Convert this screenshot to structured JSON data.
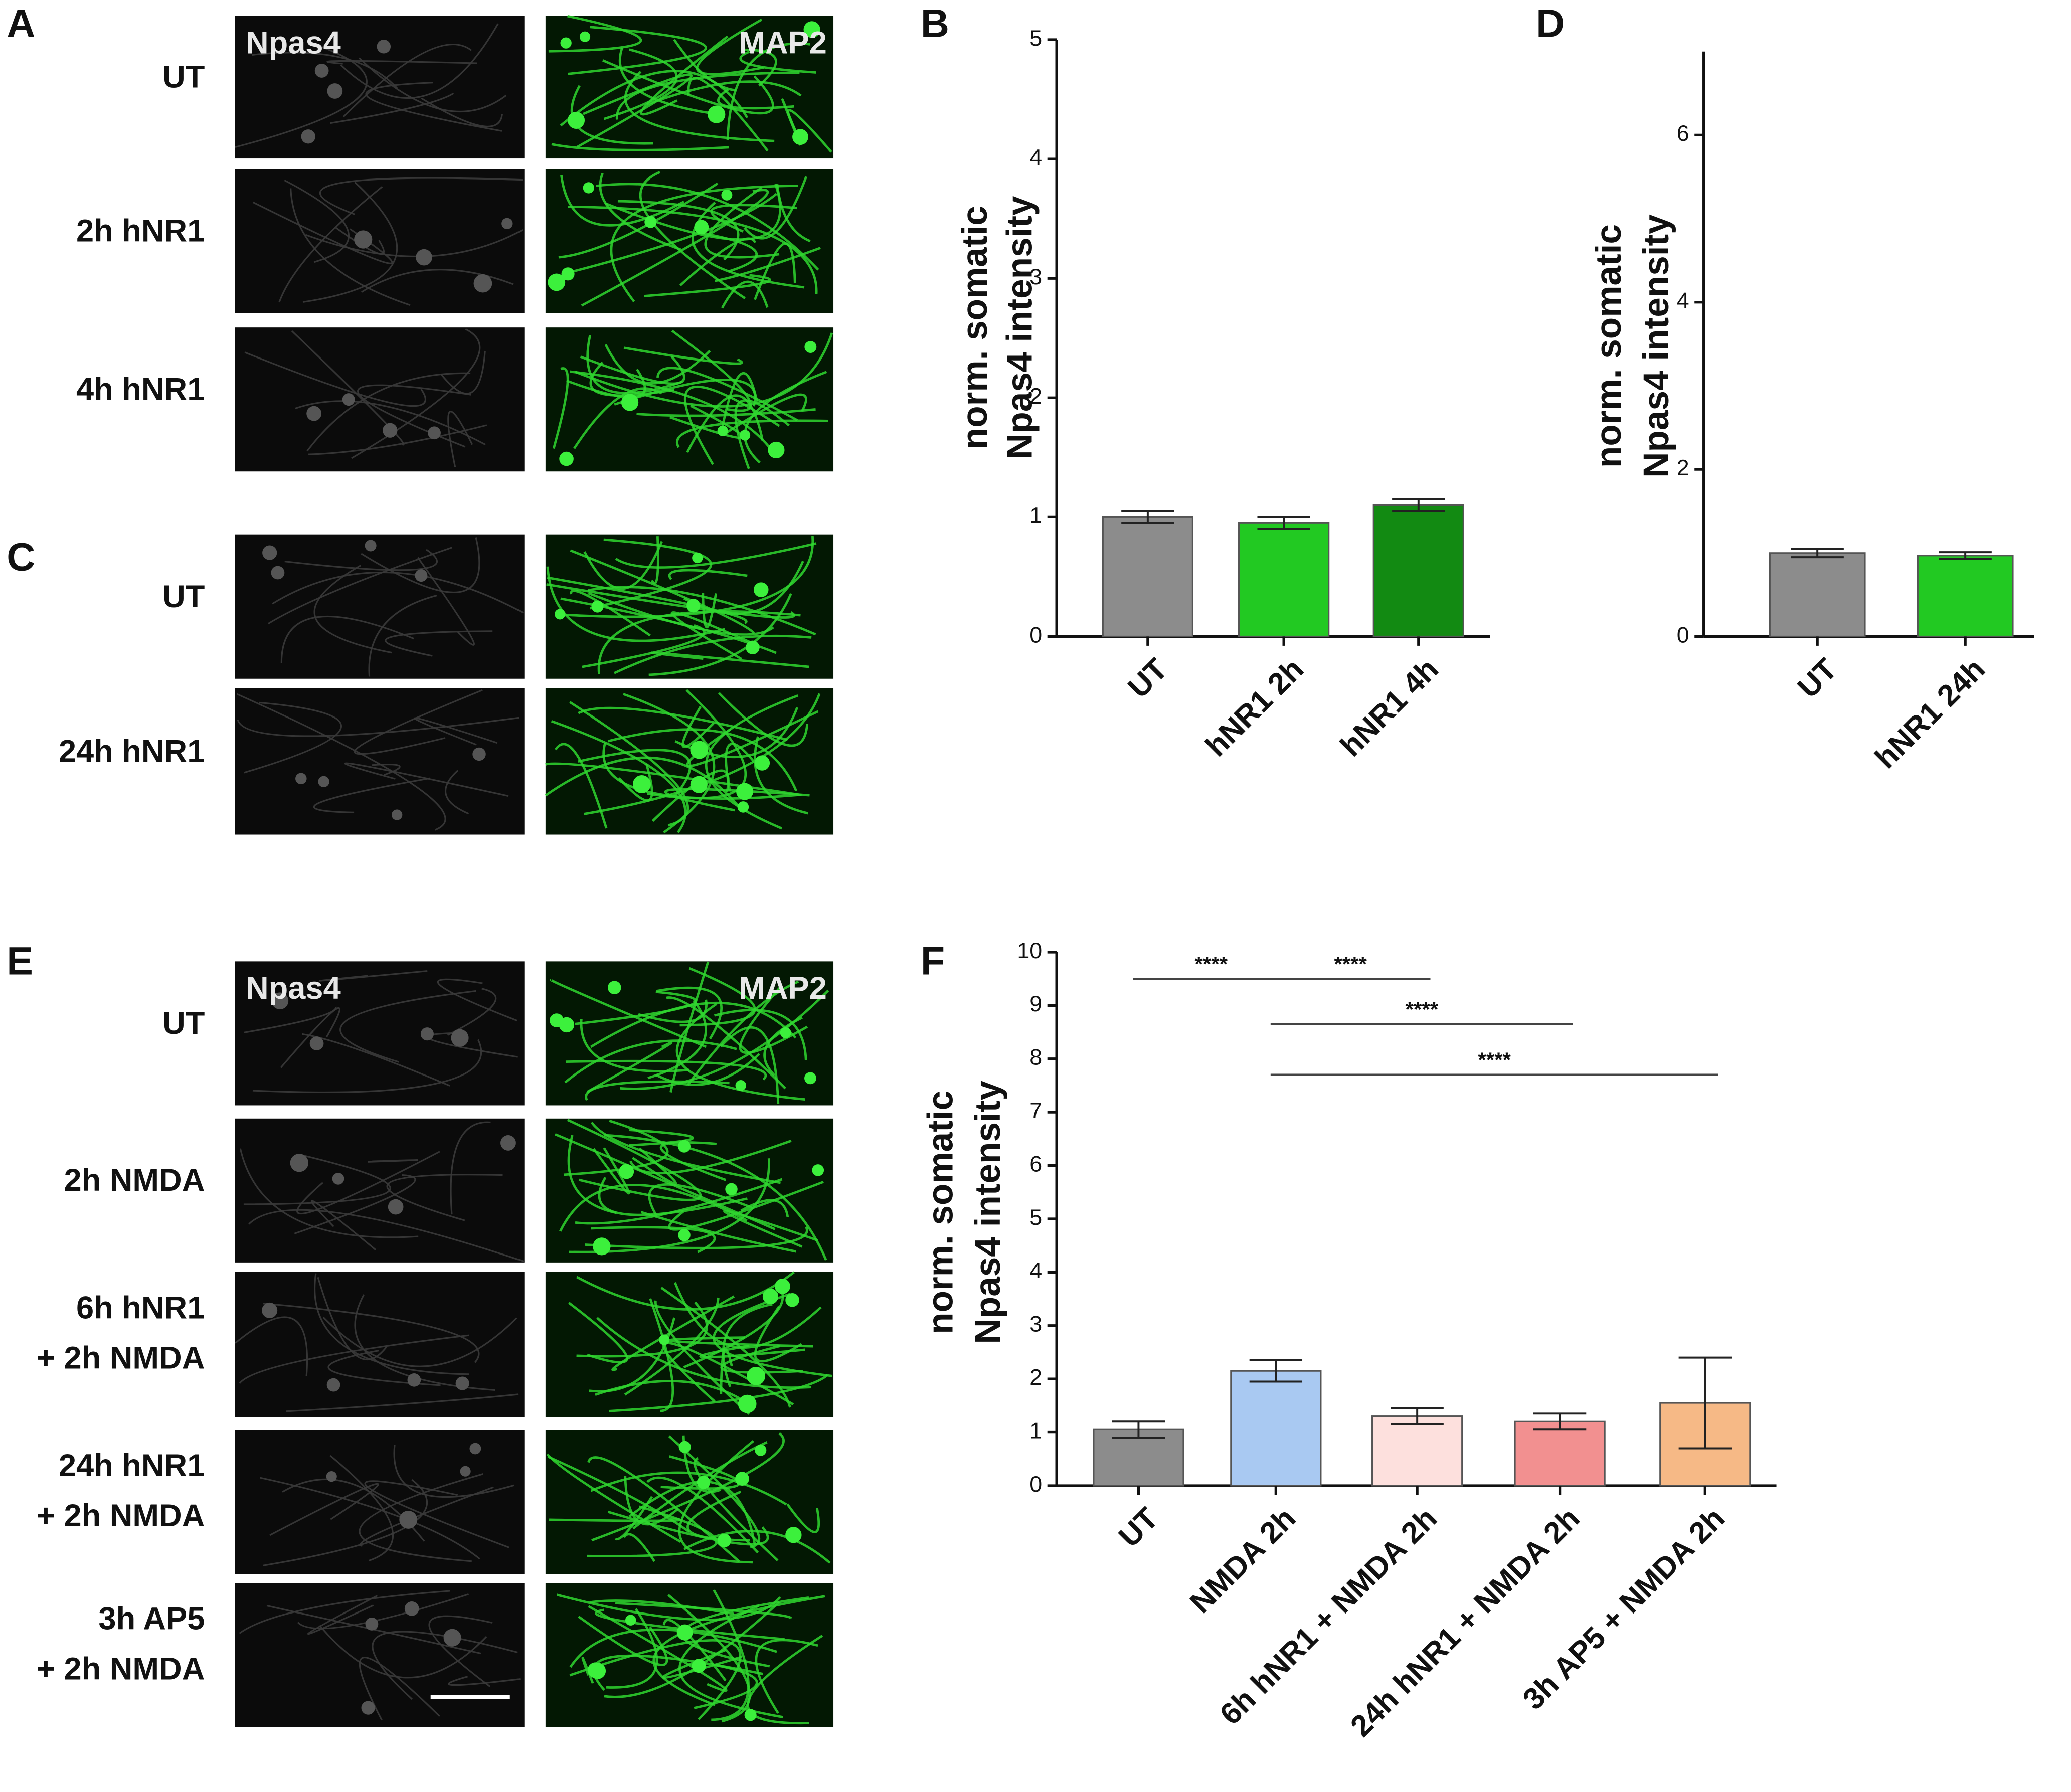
{
  "figure": {
    "panel_letters": [
      "A",
      "B",
      "C",
      "D",
      "E",
      "F"
    ],
    "image_panels": [
      {
        "channels": [
          "Npas4",
          "MAP2"
        ],
        "rows": [
          [
            "UT"
          ],
          [
            "2h hNR1"
          ],
          [
            "4h hNR1"
          ]
        ]
      },
      {
        "rows": [
          [
            "UT"
          ],
          [
            "24h hNR1"
          ]
        ]
      },
      {
        "channels": [
          "Npas4",
          "MAP2"
        ],
        "rows": [
          [
            "UT"
          ],
          [
            "2h NMDA"
          ],
          [
            "6h hNR1",
            "+ 2h NMDA"
          ],
          [
            "24h hNR1",
            "+ 2h NMDA"
          ],
          [
            "3h AP5",
            "+ 2h NMDA"
          ]
        ]
      }
    ]
  },
  "chart_data": [
    {
      "type": "bar",
      "y_label": [
        "norm. somatic",
        "Npas4 intensity"
      ],
      "categories": [
        "UT",
        "hNR1 2h",
        "hNR1 4h"
      ],
      "values": [
        1.0,
        0.95,
        1.1
      ],
      "errors": [
        0.05,
        0.05,
        0.05
      ],
      "colors": [
        "#8c8c8c",
        "#22c922",
        "#128a12"
      ],
      "ylim": [
        0,
        5
      ],
      "yticks": [
        0,
        1,
        2,
        3,
        4,
        5
      ]
    },
    {
      "type": "bar",
      "y_label": [
        "norm. somatic",
        "Npas4 intensity"
      ],
      "categories": [
        "UT",
        "hNR1 24h"
      ],
      "values": [
        1.0,
        0.97
      ],
      "errors": [
        0.05,
        0.04
      ],
      "colors": [
        "#8c8c8c",
        "#22c922"
      ],
      "ylim": [
        0,
        7
      ],
      "yticks": [
        0,
        2,
        4,
        6
      ]
    },
    {
      "type": "bar",
      "y_label": [
        "norm. somatic",
        "Npas4 intensity"
      ],
      "categories": [
        "UT",
        "NMDA 2h",
        "6h hNR1 + NMDA 2h",
        "24h hNR1 + NMDA 2h",
        "3h AP5 + NMDA 2h"
      ],
      "values": [
        1.05,
        2.15,
        1.3,
        1.2,
        1.55
      ],
      "errors": [
        0.15,
        0.2,
        0.15,
        0.15,
        0.85
      ],
      "colors": [
        "#8c8c8c",
        "#a9c9f2",
        "#fde0dd",
        "#f29090",
        "#f6b986"
      ],
      "ylim": [
        0,
        10
      ],
      "yticks": [
        0,
        1,
        2,
        3,
        4,
        5,
        6,
        7,
        8,
        9,
        10
      ],
      "annotations": [
        {
          "text": "****",
          "from": 0,
          "to": 1,
          "y": 9.5
        },
        {
          "text": "****",
          "from": 1,
          "to": 2,
          "y": 9.5
        },
        {
          "text": "****",
          "from": 1,
          "to": 3,
          "y": 8.65
        },
        {
          "text": "****",
          "from": 1,
          "to": 4,
          "y": 7.7
        }
      ]
    }
  ]
}
